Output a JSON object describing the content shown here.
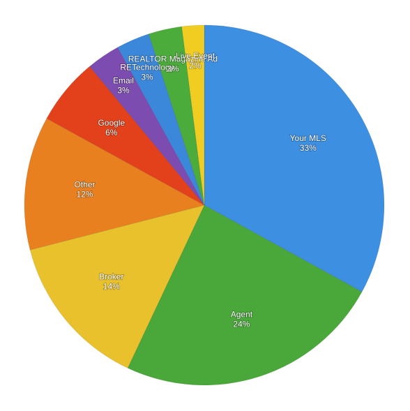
{
  "chart_data": {
    "type": "pie",
    "categories": [
      "Your MLS",
      "Agent",
      "Broker",
      "Other",
      "Google",
      "Email",
      "RETechnology",
      "REALTOR Magazine Ad",
      "Live Event"
    ],
    "values": [
      33,
      24,
      14,
      12,
      6,
      3,
      3,
      3,
      2
    ],
    "value_labels": [
      "33%",
      "24%",
      "14%",
      "12%",
      "6%",
      "3%",
      "3%",
      "3%",
      "2%"
    ],
    "colors": [
      "#3d8fe2",
      "#4aa83a",
      "#e9c12c",
      "#e9801f",
      "#e2411b",
      "#7c4cb0",
      "#3b87da",
      "#4bab3b",
      "#f1cd22"
    ]
  }
}
